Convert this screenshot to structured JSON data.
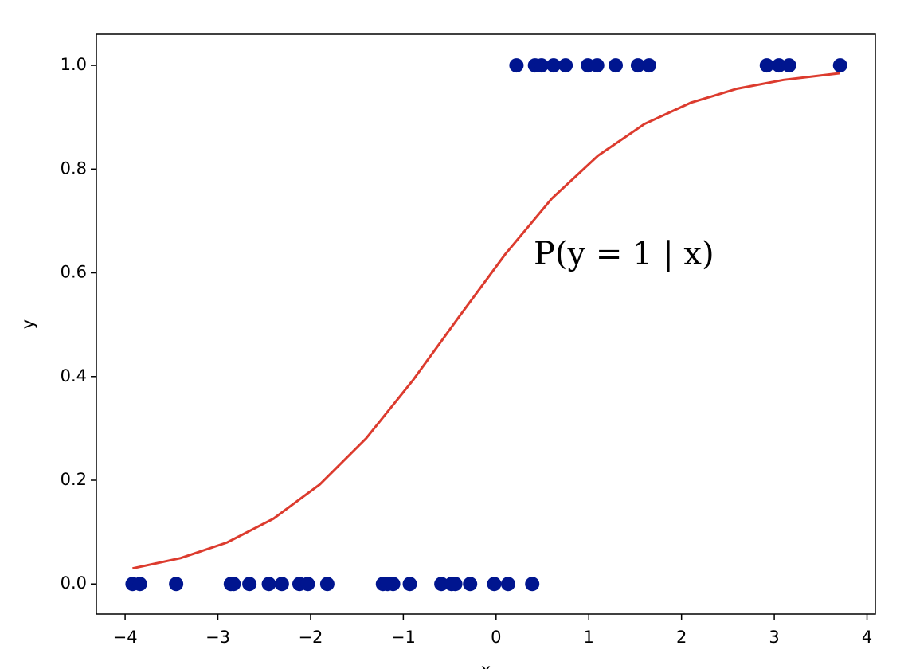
{
  "chart_data": {
    "type": "scatter",
    "xlabel": "x",
    "ylabel": "y",
    "annotation": "P(y = 1 | x)",
    "xlim": [
      -4.31,
      4.09
    ],
    "ylim": [
      -0.058,
      1.06
    ],
    "xticks": [
      {
        "value": -4,
        "label": "−4"
      },
      {
        "value": -3,
        "label": "−3"
      },
      {
        "value": -2,
        "label": "−2"
      },
      {
        "value": -1,
        "label": "−1"
      },
      0,
      1,
      2,
      3,
      4
    ],
    "yticks": [
      {
        "value": 0,
        "label": "0.0"
      },
      0.2,
      0.4,
      0.6,
      0.8,
      {
        "value": 1,
        "label": "1.0"
      }
    ],
    "series": [
      {
        "type": "scatter",
        "color": "#00158f",
        "x": [
          -3.92,
          -3.84,
          -3.45,
          -2.86,
          -2.83,
          -2.66,
          -2.45,
          -2.31,
          -2.12,
          -2.03,
          -1.82,
          -1.22,
          -1.17,
          -1.11,
          -0.93,
          -0.59,
          -0.48,
          -0.44,
          -0.28,
          -0.02,
          0.13,
          0.39,
          0.22,
          0.42,
          0.49,
          0.62,
          0.75,
          0.99,
          1.09,
          1.29,
          1.53,
          1.65,
          2.92,
          3.05,
          3.16,
          3.71
        ],
        "values": [
          0,
          0,
          0,
          0,
          0,
          0,
          0,
          0,
          0,
          0,
          0,
          0,
          0,
          0,
          0,
          0,
          0,
          0,
          0,
          0,
          0,
          0,
          1,
          1,
          1,
          1,
          1,
          1,
          1,
          1,
          1,
          1,
          1,
          1,
          1,
          1
        ]
      },
      {
        "type": "line",
        "color": "#dc3b2e",
        "x": [
          -3.92,
          -3.4,
          -2.9,
          -2.4,
          -1.9,
          -1.4,
          -0.9,
          -0.4,
          0.1,
          0.6,
          1.1,
          1.6,
          2.1,
          2.6,
          3.1,
          3.71
        ],
        "values": [
          0.03,
          0.05,
          0.08,
          0.126,
          0.192,
          0.281,
          0.392,
          0.515,
          0.636,
          0.743,
          0.826,
          0.887,
          0.928,
          0.955,
          0.972,
          0.985
        ]
      }
    ]
  }
}
